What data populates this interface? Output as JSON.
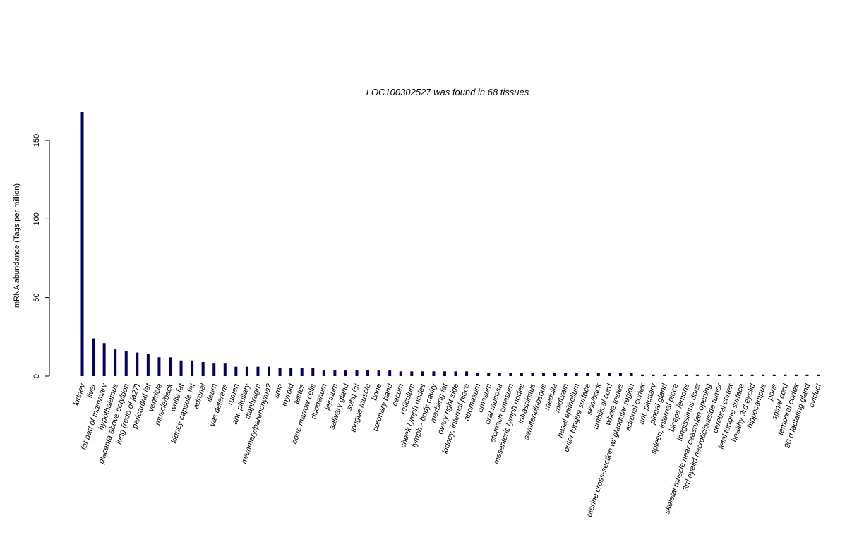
{
  "chart_data": {
    "type": "bar",
    "title": "LOC100302527  was found in  68  tissues",
    "xlabel": "",
    "ylabel": "mRNA abundance (Tags per million)",
    "ylim": [
      0,
      170
    ],
    "yticks": [
      0,
      50,
      100,
      150
    ],
    "grid": false,
    "bar_color": "#000066",
    "categories": [
      "kidney",
      "liver",
      "fat pad of mammary",
      "hypothalamus",
      "placenta above cotyldon",
      "lung (redo of ja27)",
      "pericardial fat",
      "ventricle",
      "muscle/back",
      "white fat",
      "kidney capsule fat",
      "adrenal",
      "ileum",
      "vas deferens",
      "rumen",
      "ant. pituitary",
      "diaphragm",
      "mammary/parenchyma?",
      "sme",
      "thyroid",
      "testes",
      "bone marrow cells",
      "duodenum",
      "jejunum",
      "salivary gland",
      "subq fat",
      "tongue muscle",
      "bone",
      "coronary band",
      "cecum",
      "reticulum",
      "cheek lymph nodes",
      "lymph - body cavity",
      "marbling fat",
      "ovary right side",
      "kidney; internal piece",
      "abomasum",
      "omasum",
      "oral mucosa",
      "stomach omasum",
      "mesenteric lymph nodes",
      "infraspinitus",
      "semitendinosous",
      "medulla",
      "midbrain",
      "nasal epithelium",
      "outer tongue surface",
      "skin/back",
      "umbilical cord",
      "whole testes",
      "uterine cross-section w/ glandular region",
      "adrenal cortex",
      "ant. pituitary",
      "pineal gland",
      "spleen; internal piece",
      "biceps femoris",
      "longissimus dorsi",
      "skeletal muscle near ceasarian opening",
      "3rd eyelid necrotic/outside tumor",
      "cerebral cortex",
      "fetal tongue surface",
      "healthy 3rd eyelid",
      "hippocampus",
      "pons",
      "spinal cord",
      "temporal cortex",
      "90 d lactating gland",
      "oviduct"
    ],
    "values": [
      168,
      24,
      21,
      17,
      16,
      15,
      14,
      12,
      12,
      10,
      10,
      9,
      8,
      8,
      6,
      6,
      6,
      6,
      5,
      5,
      5,
      5,
      4,
      4,
      4,
      4,
      4,
      4,
      4,
      3,
      3,
      3,
      3,
      3,
      3,
      3,
      2,
      2,
      2,
      2,
      2,
      2,
      2,
      2,
      2,
      2,
      2,
      2,
      2,
      2,
      2,
      1,
      1,
      1,
      1,
      1,
      1,
      1,
      1,
      1,
      1,
      1,
      1,
      1,
      1,
      1,
      1,
      1
    ]
  }
}
